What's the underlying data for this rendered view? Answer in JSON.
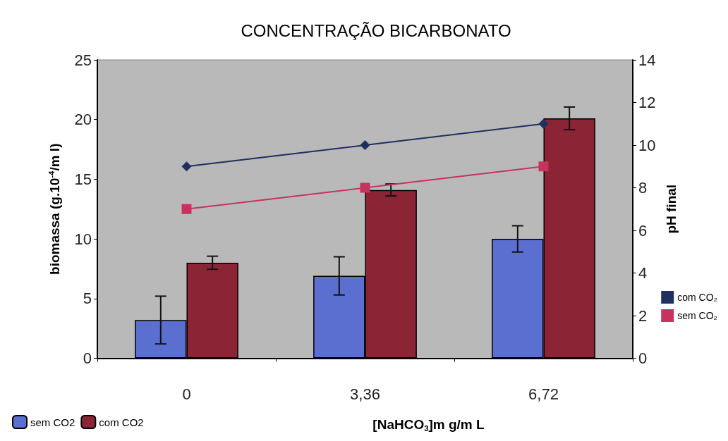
{
  "chart_data": {
    "type": "bar",
    "title": "CONCENTRAÇÃO BICARBONATO",
    "xlabel": "[NaHCO$_{3}$]m g/m L",
    "ylabel": "biomassa (g.10$^{-4}$/m l)",
    "y2label": "pH final",
    "categories": [
      "0",
      "3,36",
      "6,72"
    ],
    "series": [
      {
        "name": "sem CO2",
        "color": "#5a6fd0",
        "values": [
          3.2,
          6.9,
          10.0
        ],
        "errors": [
          2.0,
          1.6,
          1.1
        ]
      },
      {
        "name": "com CO2",
        "color": "#8b2535",
        "values": [
          8.0,
          14.1,
          20.1
        ],
        "errors": [
          0.55,
          0.5,
          0.95
        ]
      },
      {
        "name": "sem CO₂",
        "type": "line",
        "axis": "y2",
        "marker": "square",
        "color": "#c8325f",
        "values": [
          7,
          8,
          9
        ]
      },
      {
        "name": "com CO₂",
        "type": "line",
        "axis": "y2",
        "marker": "diamond",
        "color": "#1f2f5f",
        "values": [
          9,
          10,
          11
        ]
      }
    ],
    "ylim": [
      0,
      25
    ],
    "yticks": [
      0,
      5,
      10,
      15,
      20,
      25
    ],
    "y2lim": [
      0,
      14
    ],
    "y2ticks": [
      0,
      2,
      4,
      6,
      8,
      10,
      12,
      14
    ],
    "grid": false,
    "legend": "bottom left"
  }
}
